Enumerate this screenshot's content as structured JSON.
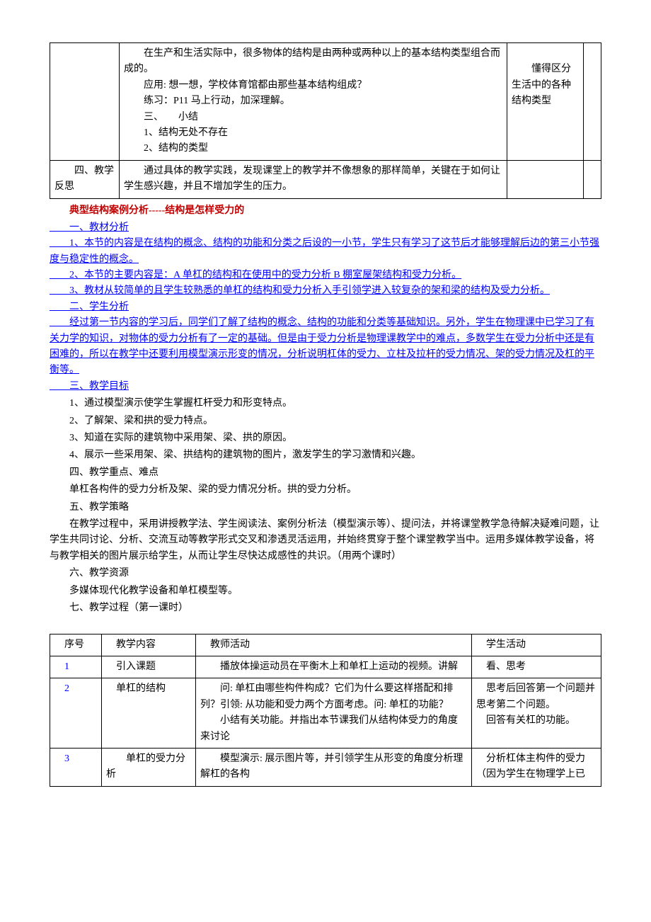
{
  "table1": {
    "rows": [
      {
        "c1": "",
        "c2": "　　在生产和生活实际中，很多物体的结构是由两种或两种以上的基本结构类型组合而成的。\n　　应用: 想一想，学校体育馆都由那些基本结构组成？\n　　练习：P11 马上行动，加深理解。\n　　三、　　小结\n　　1、结构无处不存在\n　　2、结构的类型",
        "c3": "\n　　懂得区分生活中的各种结构类型",
        "c4": ""
      },
      {
        "c1": "　　四、教学反思",
        "c2": "　　通过具体的教学实践，发现课堂上的教学并不像想象的那样简单，关键在于如何让学生感兴趣，并且不增加学生的压力。",
        "c3": "",
        "c4": ""
      }
    ]
  },
  "titleRed": "典型结构案例分析-----结构是怎样受力的",
  "blueLines": [
    "　　一、教材分析",
    "　　1、本节的内容是在结构的概念、结构的功能和分类之后设的一小节，学生只有学习了这节后才能够理解后边的第三小节强度与稳定性的概念。",
    "　　2、本节的主要内容是：A 单杠的结构和在使用中的受力分析 B 棚室屋架结构和受力分析。",
    "　　3、教材从较简单的且学生较熟悉的单杠的结构和受力分析入手引领学进入较复杂的架和梁的结构及受力分析。",
    "　　二、学生分析",
    "　　经过第一节内容的学习后，同学们了解了结构的概念、结构的功能和分类等基础知识。另外，学生在物理课中已学习了有关力学的知识，对物体的受力分析有了一定的基础。但是由于受力分析是物理课教学中的难点，多数学生在受力分析中还是有困难的，所以在教学中还要利用模型演示形变的情况，分析说明杠体的受力、立柱及拉杆的受力情况、架的受力情况及杠的平衡等。",
    "　　三、教学目标"
  ],
  "blackLines": [
    "1、通过模型演示使学生掌握杠杆受力和形变特点。",
    "2、了解架、梁和拱的受力特点。",
    "3、知道在实际的建筑物中采用架、梁、拱的原因。",
    "4、展示一些采用架、梁、拱结构的建筑物的图片，激发学生的学习激情和兴趣。",
    "四、教学重点、难点",
    "单杠各构件的受力分析及架、梁的受力情况分析。拱的受力分析。",
    "五、教学策略",
    "在教学过程中，采用讲授教学法、学生阅读法、案例分析法（模型演示等）、提问法，并将课堂教学急待解决疑难问题，让学生共同讨论、分析、交流互动等教学形式交叉和渗透灵活运用，并始终贯穿于整个课堂教学当中。运用多媒体教学设备，将与教学相关的图片展示给学生，从而让学生尽快达成感性的共识。（用两个课时）",
    "六、教学资源",
    "多媒体现代化教学设备和单杠模型等。",
    "七、教学过程（第一课时）"
  ],
  "table2": {
    "header": [
      "序号",
      "教学内容",
      "教师活动",
      "学生活动"
    ],
    "rows": [
      {
        "n": "1",
        "c2": "引入课题",
        "c3": "　　播放体操运动员在平衡木上和单杠上运动的视频。讲解",
        "c4": "　看、思考"
      },
      {
        "n": "2",
        "c2": "单杠的结构",
        "c3": "　　问: 单杠由哪些构件构成？它们为什么要这样搭配和排列？引领: 从功能和受力两个方面考虑。问: 单杠的功能？\n　　小结有关功能。并指出本节课我们从结构体受力的角度来讨论",
        "c4": "　思考后回答第一个问题并思考第二个问题。\n　回答有关杠的功能。"
      },
      {
        "n": "3",
        "c2": "　　单杠的受力分析",
        "c3": "　　模型演示: 展示图片等，并引领学生从形变的角度分析理解杠的各构",
        "c4": "　分析杠体主构件的受力（因为学生在物理学上已"
      }
    ]
  }
}
